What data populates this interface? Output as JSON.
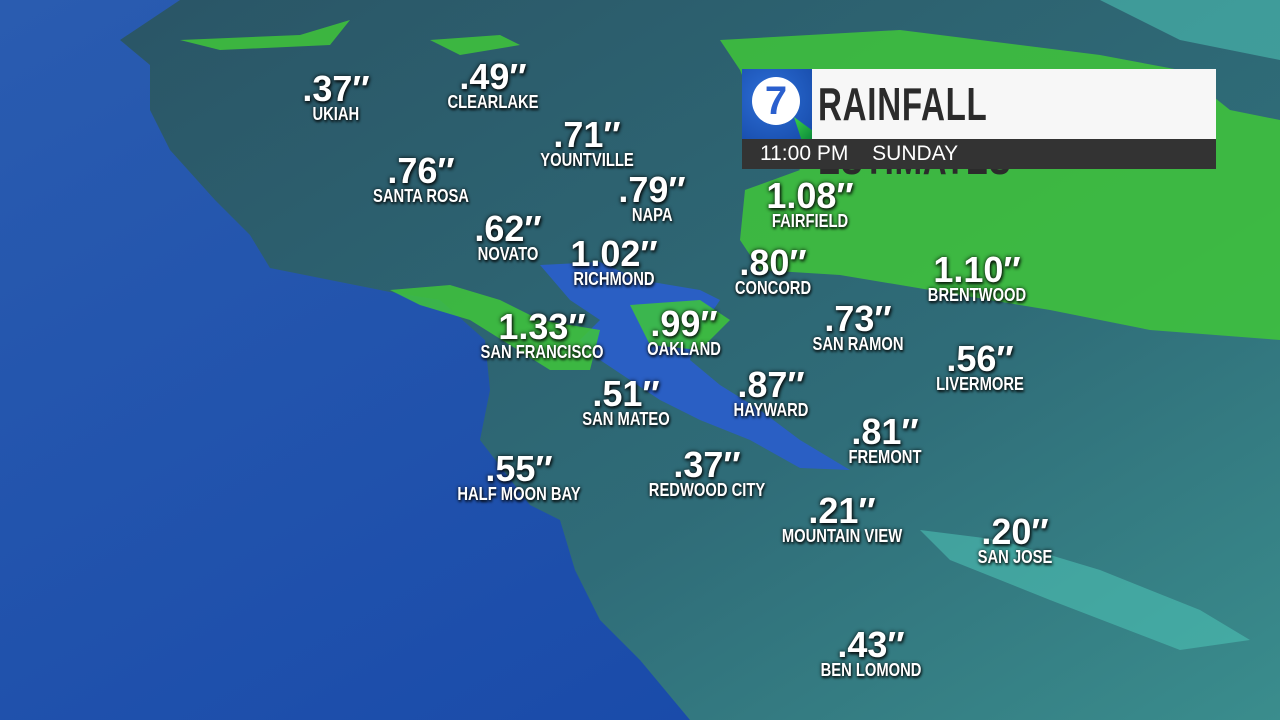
{
  "header": {
    "logo": "abc7-logo",
    "title": "RAINFALL ESTIMATES",
    "time": "11:00 PM",
    "day": "SUNDAY"
  },
  "colors": {
    "ocean": "#1b4fa8",
    "land": "#2d6272",
    "rain_green": "#3fc63a",
    "bay": "#2a5fc4"
  },
  "labels": [
    {
      "value": ".37″",
      "name": "UKIAH"
    },
    {
      "value": ".49″",
      "name": "CLEARLAKE"
    },
    {
      "value": ".71″",
      "name": "YOUNTVILLE"
    },
    {
      "value": ".76″",
      "name": "SANTA ROSA"
    },
    {
      "value": ".79″",
      "name": "NAPA"
    },
    {
      "value": "1.08″",
      "name": "FAIRFIELD"
    },
    {
      "value": ".62″",
      "name": "NOVATO"
    },
    {
      "value": "1.02″",
      "name": "RICHMOND"
    },
    {
      "value": ".80″",
      "name": "CONCORD"
    },
    {
      "value": "1.10″",
      "name": "BRENTWOOD"
    },
    {
      "value": "1.33″",
      "name": "SAN FRANCISCO"
    },
    {
      "value": ".99″",
      "name": "OAKLAND"
    },
    {
      "value": ".73″",
      "name": "SAN RAMON"
    },
    {
      "value": ".56″",
      "name": "LIVERMORE"
    },
    {
      "value": ".51″",
      "name": "SAN MATEO"
    },
    {
      "value": ".87″",
      "name": "HAYWARD"
    },
    {
      "value": ".81″",
      "name": "FREMONT"
    },
    {
      "value": ".55″",
      "name": "HALF MOON BAY"
    },
    {
      "value": ".37″",
      "name": "REDWOOD CITY"
    },
    {
      "value": ".21″",
      "name": "MOUNTAIN VIEW"
    },
    {
      "value": ".20″",
      "name": "SAN JOSE"
    },
    {
      "value": ".43″",
      "name": "BEN LOMOND"
    }
  ]
}
